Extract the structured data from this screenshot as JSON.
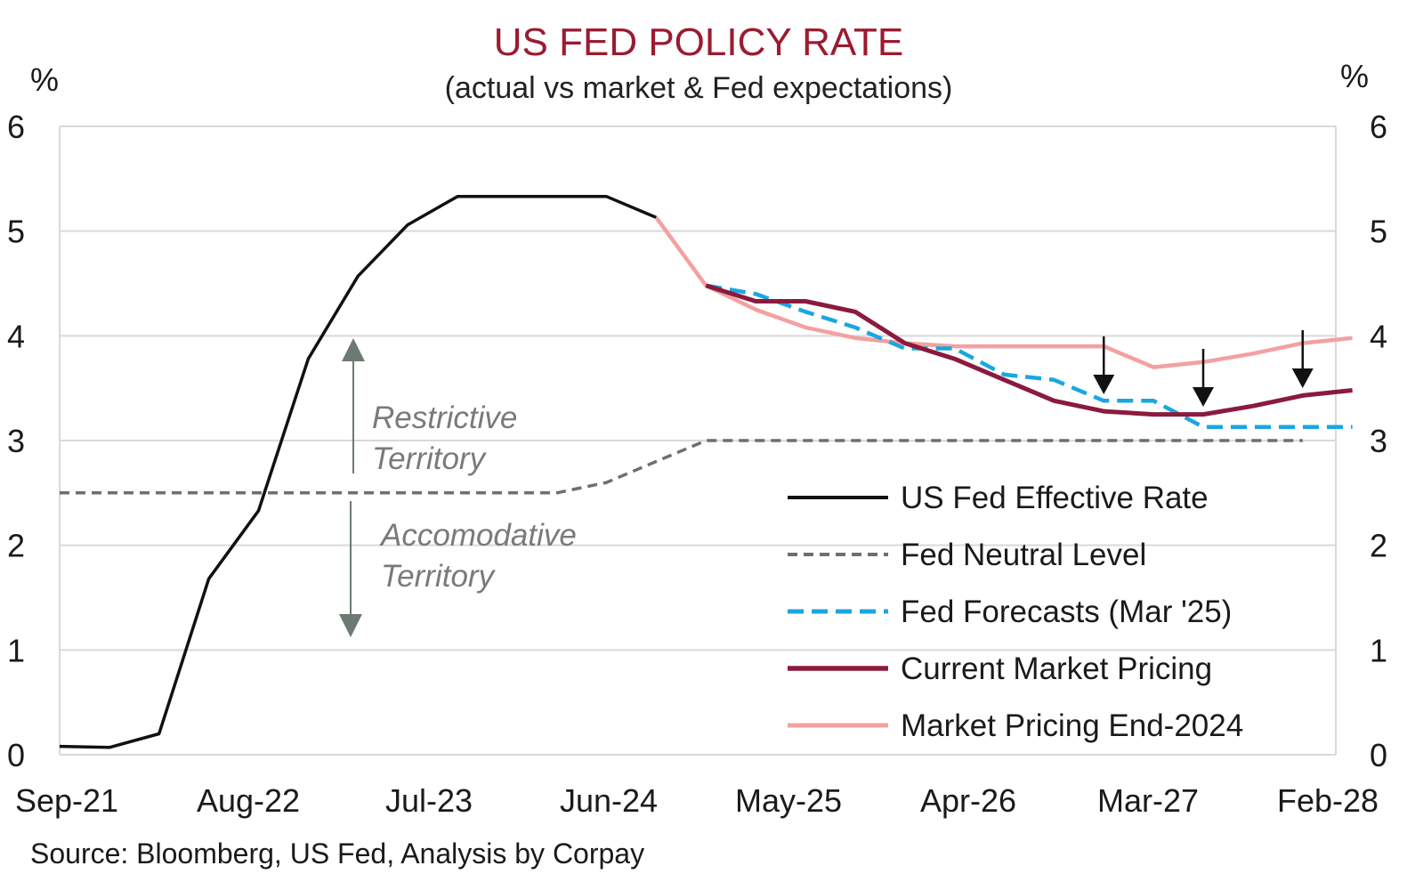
{
  "chart_data": {
    "type": "line",
    "title": "US FED POLICY RATE",
    "subtitle": "(actual vs market & Fed expectations)",
    "y_unit_left": "%",
    "y_unit_right": "%",
    "ylim": [
      0,
      6
    ],
    "yticks": [
      "0",
      "1",
      "2",
      "3",
      "4",
      "5",
      "6"
    ],
    "x_tick_labels": [
      "Sep-21",
      "Aug-22",
      "Jul-23",
      "Jun-24",
      "May-25",
      "Apr-26",
      "Mar-27",
      "Feb-28"
    ],
    "grid": true,
    "legend_position": "bottom-right",
    "source": "Source: Bloomberg, US Fed, Analysis by Corpay",
    "annotations": {
      "restrictive_line1": "Restrictive",
      "restrictive_line2": "Territory",
      "accomodative_line1": "Accomodative",
      "accomodative_line2": "Territory"
    },
    "series": [
      {
        "name": "US Fed Effective Rate",
        "color": "#111111",
        "style": "solid",
        "x": [
          "2021-09",
          "2021-12",
          "2022-03",
          "2022-06",
          "2022-09",
          "2022-12",
          "2023-03",
          "2023-06",
          "2023-09",
          "2023-12",
          "2024-03",
          "2024-06",
          "2024-09"
        ],
        "y": [
          0.08,
          0.07,
          0.2,
          1.68,
          2.33,
          3.78,
          4.57,
          5.06,
          5.33,
          5.33,
          5.33,
          5.33,
          5.13
        ]
      },
      {
        "name": "Fed Neutral Level",
        "color": "#6f6f6f",
        "style": "dashed",
        "x": [
          "2021-09",
          "2022-03",
          "2022-09",
          "2023-03",
          "2023-09",
          "2024-03",
          "2024-06",
          "2024-09",
          "2024-12",
          "2025-03",
          "2025-06",
          "2025-12",
          "2026-06",
          "2026-12",
          "2027-06",
          "2027-12"
        ],
        "y": [
          2.5,
          2.5,
          2.5,
          2.5,
          2.5,
          2.5,
          2.6,
          2.8,
          3.0,
          3.0,
          3.0,
          3.0,
          3.0,
          3.0,
          3.0,
          3.0
        ]
      },
      {
        "name": "Fed Forecasts (Mar '25)",
        "color": "#1aa7e0",
        "style": "dashed",
        "x": [
          "2024-12",
          "2025-03",
          "2025-06",
          "2025-09",
          "2025-12",
          "2026-03",
          "2026-06",
          "2026-09",
          "2026-12",
          "2027-03",
          "2027-06",
          "2027-09",
          "2027-12",
          "2028-03"
        ],
        "y": [
          4.48,
          4.4,
          4.23,
          4.08,
          3.88,
          3.88,
          3.63,
          3.58,
          3.38,
          3.38,
          3.13,
          3.13,
          3.13,
          3.13
        ]
      },
      {
        "name": "Current Market Pricing",
        "color": "#8b1a3d",
        "style": "solid",
        "x": [
          "2024-12",
          "2025-03",
          "2025-06",
          "2025-09",
          "2025-12",
          "2026-03",
          "2026-06",
          "2026-09",
          "2026-12",
          "2027-03",
          "2027-06",
          "2027-09",
          "2027-12",
          "2028-03"
        ],
        "y": [
          4.48,
          4.33,
          4.33,
          4.23,
          3.93,
          3.78,
          3.58,
          3.38,
          3.28,
          3.25,
          3.25,
          3.33,
          3.43,
          3.48
        ]
      },
      {
        "name": "Market Pricing End-2024",
        "color": "#f4a0a0",
        "style": "solid",
        "x": [
          "2024-09",
          "2024-12",
          "2025-03",
          "2025-06",
          "2025-09",
          "2025-12",
          "2026-03",
          "2026-06",
          "2026-09",
          "2026-12",
          "2027-03",
          "2027-06",
          "2027-09",
          "2027-12",
          "2028-03"
        ],
        "y": [
          5.13,
          4.48,
          4.25,
          4.08,
          3.98,
          3.93,
          3.9,
          3.9,
          3.9,
          3.9,
          3.7,
          3.75,
          3.83,
          3.93,
          3.98
        ]
      }
    ],
    "down_arrows_at": [
      "2026-12",
      "2027-06",
      "2027-12"
    ]
  },
  "colors": {
    "title": "#9b1b30",
    "grid": "#d9d9d9",
    "arrow_grey": "#6d7a72",
    "annotation_grey": "#7a7a7a"
  }
}
